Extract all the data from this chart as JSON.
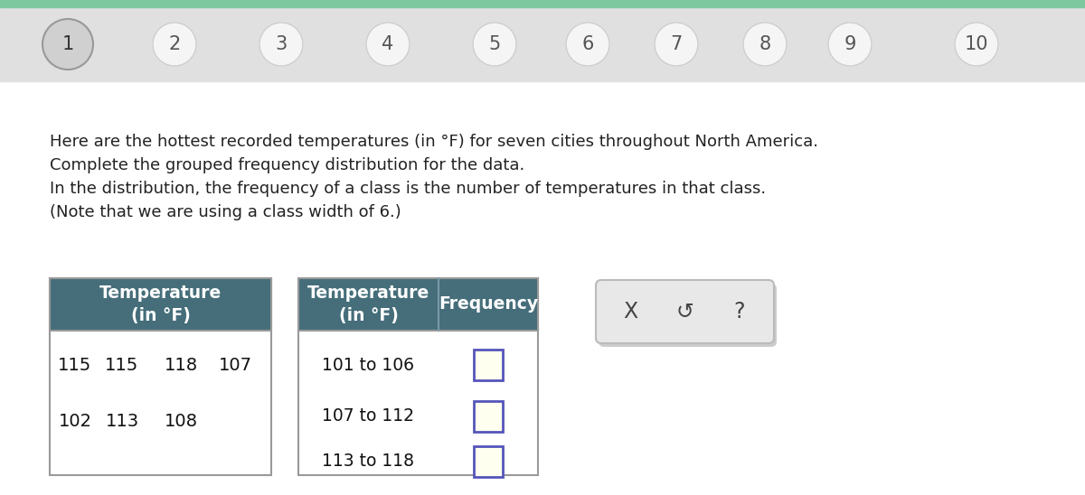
{
  "bg_color": "#ebebeb",
  "white": "#ffffff",
  "nav_numbers": [
    "1",
    "2",
    "3",
    "4",
    "5",
    "6",
    "7",
    "8",
    "9",
    "10"
  ],
  "paragraph_lines": [
    "Here are the hottest recorded temperatures (in °F) for seven cities throughout North America.",
    "Complete the grouped frequency distribution for the data.",
    "In the distribution, the frequency of a class is the number of temperatures in that class.",
    "(Note that we are using a class width of 6.)"
  ],
  "left_table_header": "Temperature\n(in °F)",
  "left_table_data_row1": [
    "115",
    "115",
    "118",
    "107"
  ],
  "left_table_data_row2": [
    "102",
    "113",
    "108"
  ],
  "right_table_header1": "Temperature\n(in °F)",
  "right_table_header2": "Frequency",
  "right_table_rows": [
    "101 to 106",
    "107 to 112",
    "113 to 118"
  ],
  "header_color": "#456e7a",
  "header_text_color": "#ffffff",
  "input_box_border": "#5555bb",
  "input_box_fill": "#fffff0",
  "button_box_color": "#e8e8e8",
  "button_symbols": [
    "X",
    "↺",
    "?"
  ],
  "top_bar_color": "#7ec8a0",
  "nav_bar_color": "#e0e0e0"
}
